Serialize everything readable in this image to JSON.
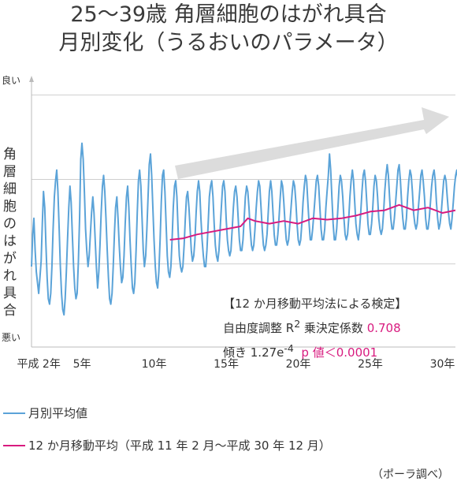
{
  "title_line1": "25～39歳 角層細胞のはがれ具合",
  "title_line2": "月別変化（うるおいのパラメータ）",
  "chart_data": {
    "type": "line",
    "ylabel": "角層細胞のはがれ具合",
    "y_top_label": "良い",
    "y_bottom_label": "悪い",
    "x_tick_labels": [
      "平成 2年",
      "5年",
      "10年",
      "15年",
      "20年",
      "25年",
      "30年"
    ],
    "x_tick_years": [
      2,
      5,
      10,
      15,
      20,
      25,
      30
    ],
    "x_range_years": [
      1.5,
      30.9
    ],
    "y_range": [
      0,
      100
    ],
    "grid_y": [
      31,
      62.5,
      94
    ],
    "series": [
      {
        "name": "月別平均値",
        "color": "#5ba3d8",
        "x_start_year": 1.5,
        "step": "month",
        "values": [
          30,
          42,
          48,
          36,
          28,
          24,
          20,
          26,
          32,
          46,
          58,
          52,
          38,
          26,
          18,
          16,
          20,
          30,
          44,
          56,
          62,
          66,
          58,
          44,
          30,
          20,
          14,
          12,
          18,
          28,
          40,
          52,
          60,
          54,
          42,
          30,
          22,
          18,
          20,
          32,
          48,
          70,
          76,
          70,
          58,
          44,
          36,
          30,
          34,
          42,
          50,
          56,
          50,
          40,
          30,
          22,
          28,
          38,
          50,
          60,
          64,
          58,
          48,
          36,
          26,
          18,
          16,
          20,
          30,
          42,
          52,
          56,
          48,
          38,
          30,
          24,
          26,
          34,
          46,
          56,
          60,
          52,
          40,
          30,
          22,
          20,
          24,
          36,
          50,
          62,
          66,
          60,
          48,
          36,
          30,
          34,
          44,
          56,
          68,
          72,
          64,
          52,
          40,
          30,
          24,
          22,
          28,
          40,
          54,
          64,
          66,
          58,
          46,
          34,
          28,
          26,
          30,
          40,
          52,
          60,
          62,
          56,
          44,
          34,
          30,
          28,
          30,
          38,
          48,
          56,
          58,
          52,
          44,
          36,
          32,
          34,
          40,
          50,
          58,
          62,
          58,
          48,
          40,
          34,
          30,
          30,
          36,
          46,
          56,
          60,
          62,
          56,
          46,
          38,
          34,
          32,
          36,
          44,
          52,
          60,
          62,
          58,
          48,
          40,
          36,
          34,
          36,
          44,
          52,
          58,
          60,
          56,
          48,
          40,
          36,
          36,
          40,
          48,
          56,
          60,
          58,
          52,
          44,
          38,
          36,
          38,
          44,
          52,
          58,
          62,
          60,
          52,
          44,
          38,
          36,
          38,
          42,
          50,
          58,
          62,
          58,
          50,
          42,
          38,
          38,
          42,
          48,
          56,
          62,
          60,
          54,
          46,
          40,
          38,
          40,
          46,
          52,
          58,
          62,
          60,
          54,
          46,
          40,
          38,
          40,
          46,
          54,
          60,
          64,
          62,
          54,
          46,
          40,
          40,
          44,
          50,
          56,
          62,
          64,
          60,
          52,
          44,
          40,
          40,
          44,
          52,
          58,
          64,
          72,
          66,
          56,
          46,
          40,
          40,
          44,
          52,
          60,
          64,
          62,
          56,
          48,
          42,
          40,
          42,
          48,
          56,
          62,
          66,
          62,
          54,
          46,
          42,
          40,
          44,
          50,
          58,
          64,
          66,
          62,
          54,
          46,
          42,
          42,
          46,
          52,
          60,
          64,
          62,
          56,
          48,
          44,
          42,
          44,
          50,
          58,
          64,
          68,
          64,
          56,
          48,
          44,
          44,
          48,
          54,
          60,
          66,
          68,
          62,
          54,
          48,
          44,
          44,
          48,
          56,
          62,
          66,
          64,
          58,
          50,
          46,
          44,
          46,
          52,
          58,
          64,
          66,
          62,
          56,
          48,
          44,
          44,
          48,
          54,
          60,
          64,
          66,
          62,
          54,
          48,
          44,
          46,
          50,
          56,
          62,
          64,
          62,
          56,
          50,
          46,
          44,
          48,
          54,
          60,
          64,
          66,
          62,
          56,
          50,
          46,
          46,
          50,
          56,
          62,
          66,
          64,
          58,
          50,
          46
        ]
      },
      {
        "name": "12 か月移動平均（平成 11 年 2 月～平成 30 年 12 月）",
        "color": "#d81b7f",
        "x_start_year": 11.1,
        "x_end_year": 30.9,
        "points": [
          [
            11.1,
            40
          ],
          [
            12,
            40.5
          ],
          [
            13,
            42
          ],
          [
            14,
            43
          ],
          [
            15,
            44
          ],
          [
            16,
            45
          ],
          [
            16.5,
            48
          ],
          [
            17,
            47
          ],
          [
            18,
            46
          ],
          [
            19,
            47
          ],
          [
            20,
            46
          ],
          [
            21,
            48
          ],
          [
            22,
            47.5
          ],
          [
            23,
            48
          ],
          [
            24,
            49
          ],
          [
            25,
            50.5
          ],
          [
            26,
            51
          ],
          [
            27,
            53
          ],
          [
            28,
            51
          ],
          [
            29,
            52
          ],
          [
            30,
            50
          ],
          [
            30.9,
            51
          ]
        ]
      }
    ],
    "annotation": {
      "line1": "【12 か月移動平均法による検定】",
      "line2_prefix": "自由度調整 R",
      "line2_sup": "2",
      "line2_mid": " 乗決定係数 ",
      "line2_value": "0.708",
      "line3_prefix": "傾き 1.27e",
      "line3_sup": "-4",
      "line3_value": "p 値＜0.0001"
    },
    "trend_arrow": true
  },
  "source": "（ポーラ調べ）"
}
